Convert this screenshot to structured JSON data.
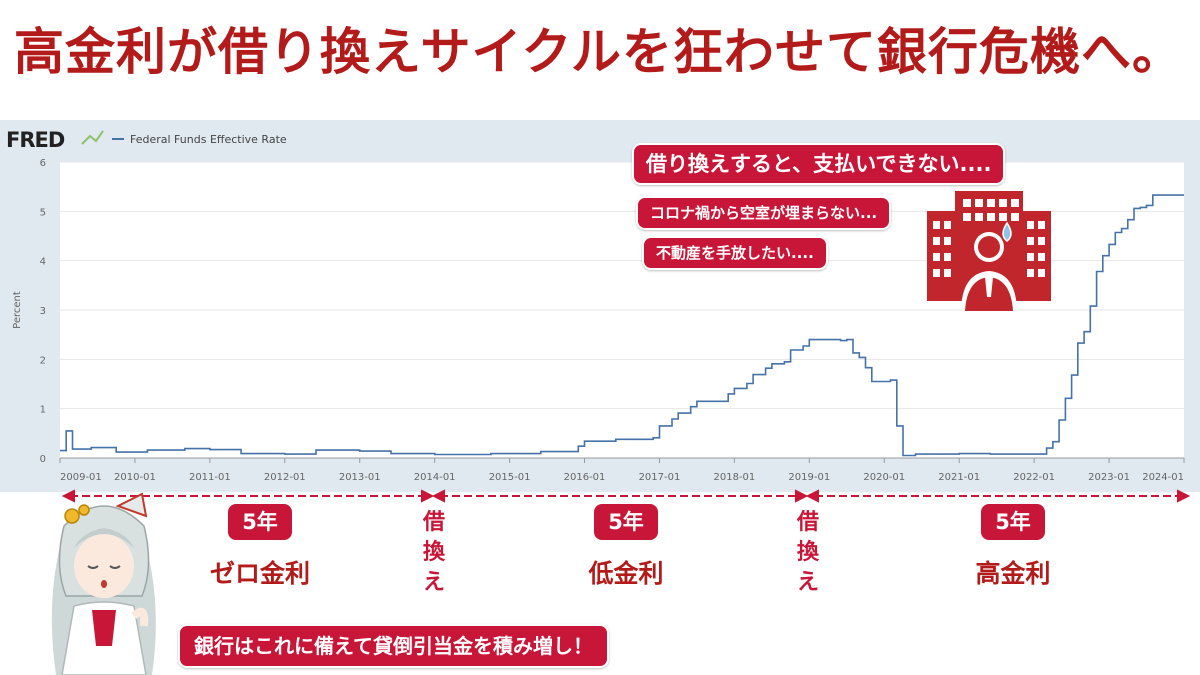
{
  "headline": "高金利が借り換えサイクルを狂わせて銀行危機へ。",
  "chart_data": {
    "type": "line",
    "source_logo": "FRED",
    "legend": "Federal Funds Effective Rate",
    "ylabel": "Percent",
    "ylim": [
      0,
      6
    ],
    "yticks": [
      "0",
      "1",
      "2",
      "3",
      "4",
      "5",
      "6"
    ],
    "xlim": [
      "2009-01",
      "2024-01"
    ],
    "xticks": [
      "2009-01",
      "2010-01",
      "2011-01",
      "2012-01",
      "2013-01",
      "2014-01",
      "2015-01",
      "2016-01",
      "2017-01",
      "2018-01",
      "2019-01",
      "2020-01",
      "2021-01",
      "2022-01",
      "2023-01",
      "2024-01"
    ],
    "recessions": [
      [
        "2009-01",
        "2009-06"
      ],
      [
        "2020-02",
        "2020-04"
      ]
    ],
    "series": [
      {
        "color": "#4572a7",
        "points": [
          [
            "2009-01",
            0.15
          ],
          [
            "2009-02",
            0.55
          ],
          [
            "2009-03",
            0.18
          ],
          [
            "2009-06",
            0.21
          ],
          [
            "2009-10",
            0.12
          ],
          [
            "2010-03",
            0.16
          ],
          [
            "2010-09",
            0.19
          ],
          [
            "2011-01",
            0.17
          ],
          [
            "2011-06",
            0.09
          ],
          [
            "2012-01",
            0.08
          ],
          [
            "2012-06",
            0.16
          ],
          [
            "2013-01",
            0.14
          ],
          [
            "2013-06",
            0.09
          ],
          [
            "2014-01",
            0.07
          ],
          [
            "2014-10",
            0.09
          ],
          [
            "2015-06",
            0.13
          ],
          [
            "2015-12",
            0.24
          ],
          [
            "2016-01",
            0.34
          ],
          [
            "2016-06",
            0.38
          ],
          [
            "2016-12",
            0.41
          ],
          [
            "2017-01",
            0.65
          ],
          [
            "2017-03",
            0.79
          ],
          [
            "2017-04",
            0.91
          ],
          [
            "2017-06",
            1.04
          ],
          [
            "2017-07",
            1.15
          ],
          [
            "2017-12",
            1.3
          ],
          [
            "2018-01",
            1.41
          ],
          [
            "2018-03",
            1.51
          ],
          [
            "2018-04",
            1.69
          ],
          [
            "2018-06",
            1.82
          ],
          [
            "2018-07",
            1.91
          ],
          [
            "2018-09",
            1.95
          ],
          [
            "2018-10",
            2.19
          ],
          [
            "2018-12",
            2.27
          ],
          [
            "2019-01",
            2.4
          ],
          [
            "2019-06",
            2.38
          ],
          [
            "2019-07",
            2.4
          ],
          [
            "2019-08",
            2.13
          ],
          [
            "2019-09",
            2.04
          ],
          [
            "2019-10",
            1.83
          ],
          [
            "2019-11",
            1.55
          ],
          [
            "2020-01",
            1.55
          ],
          [
            "2020-02",
            1.58
          ],
          [
            "2020-03",
            0.65
          ],
          [
            "2020-04",
            0.05
          ],
          [
            "2020-06",
            0.08
          ],
          [
            "2021-01",
            0.09
          ],
          [
            "2021-06",
            0.08
          ],
          [
            "2022-01",
            0.08
          ],
          [
            "2022-03",
            0.2
          ],
          [
            "2022-04",
            0.33
          ],
          [
            "2022-05",
            0.77
          ],
          [
            "2022-06",
            1.21
          ],
          [
            "2022-07",
            1.68
          ],
          [
            "2022-08",
            2.33
          ],
          [
            "2022-09",
            2.56
          ],
          [
            "2022-10",
            3.08
          ],
          [
            "2022-11",
            3.78
          ],
          [
            "2022-12",
            4.1
          ],
          [
            "2023-01",
            4.33
          ],
          [
            "2023-02",
            4.57
          ],
          [
            "2023-03",
            4.65
          ],
          [
            "2023-04",
            4.83
          ],
          [
            "2023-05",
            5.06
          ],
          [
            "2023-06",
            5.08
          ],
          [
            "2023-07",
            5.12
          ],
          [
            "2023-08",
            5.33
          ],
          [
            "2024-01",
            5.33
          ]
        ]
      }
    ]
  },
  "callouts": {
    "main": "借り換えすると、支払いできない....",
    "vacancy": "コロナ禍から空室が埋まらない...",
    "sell": "不動産を手放したい...."
  },
  "timeline": {
    "periods": [
      {
        "badge": "5年",
        "label": "ゼロ金利"
      },
      {
        "badge": "5年",
        "label": "低金利"
      },
      {
        "badge": "5年",
        "label": "高金利"
      }
    ],
    "refinance_chars": [
      "借",
      "換",
      "え"
    ]
  },
  "bottom_caption": "銀行はこれに備えて貸倒引当金を積み増し！",
  "colors": {
    "accent": "#c81638",
    "title": "#b31b1b",
    "line": "#4572a7",
    "chart_bg": "#e1e9f0",
    "recession": "#e3e3e3"
  },
  "icons": {
    "building": "building-with-worried-person-icon",
    "mascot": "anime-girl-mascot"
  }
}
